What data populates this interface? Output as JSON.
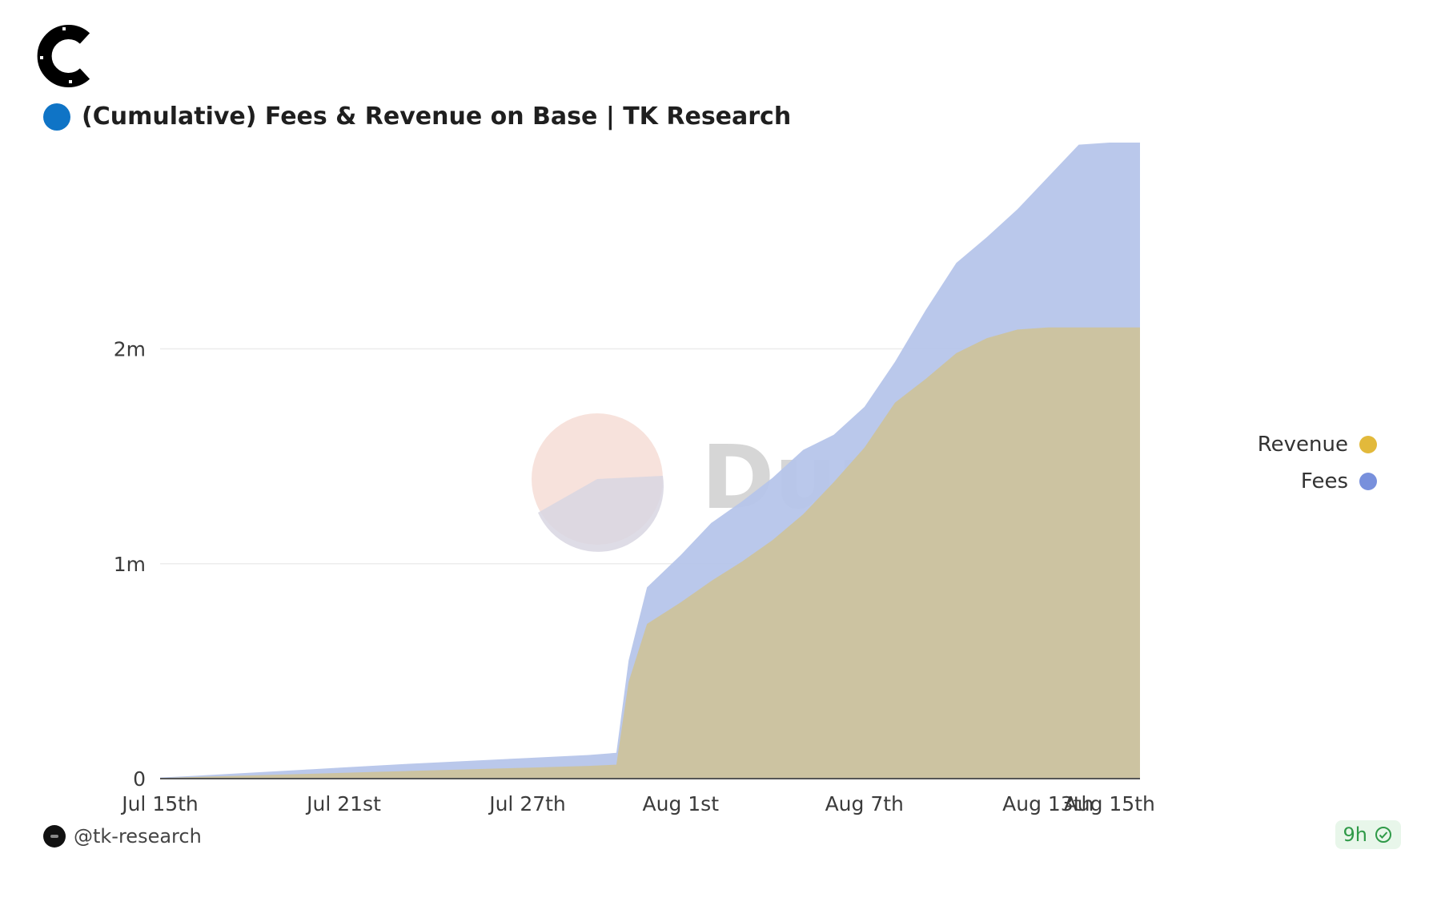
{
  "logo": {
    "icon": "c-logo-icon"
  },
  "title": {
    "text": "(Cumulative) Fees & Revenue on Base | TK Research",
    "dot_color": "#0f74c6"
  },
  "watermark": {
    "text": "Dune"
  },
  "legend": [
    {
      "label": "Revenue",
      "color": "#e2b93b"
    },
    {
      "label": "Fees",
      "color": "#7890dc"
    }
  ],
  "footer": {
    "author": "@tk-research",
    "freshness": "9h",
    "freshness_icon": "check-circle-icon"
  },
  "chart_data": {
    "type": "area",
    "title": "(Cumulative) Fees & Revenue on Base | TK Research",
    "stacked": false,
    "x_ticks": [
      "Jul 15th",
      "Jul 21st",
      "Jul 27th",
      "Aug 1st",
      "Aug 7th",
      "Aug 13th",
      "Aug 15th"
    ],
    "x_tick_day_index": [
      0,
      6,
      12,
      17,
      23,
      29,
      31
    ],
    "y_ticks": [
      "0",
      "1m",
      "2m"
    ],
    "y_tick_values": [
      0,
      1000000,
      2000000
    ],
    "ylim": [
      0,
      2960000
    ],
    "xlim": [
      0,
      32
    ],
    "grid": true,
    "legend_position": "right",
    "series": [
      {
        "name": "Fees",
        "color": "#b6c5ea",
        "x": [
          0,
          1,
          2,
          3,
          4,
          5,
          6,
          7,
          8,
          9,
          10,
          11,
          12,
          13,
          14,
          14.9,
          15.3,
          15.9,
          17,
          18,
          19,
          20,
          21,
          22,
          23,
          24,
          25,
          26,
          27,
          28,
          29,
          30,
          31,
          32
        ],
        "values": [
          5000,
          12000,
          20000,
          28000,
          36000,
          44000,
          52000,
          60000,
          68000,
          75000,
          82000,
          89000,
          96000,
          103000,
          110000,
          120000,
          550000,
          890000,
          1040000,
          1190000,
          1290000,
          1400000,
          1530000,
          1600000,
          1730000,
          1940000,
          2180000,
          2400000,
          2520000,
          2650000,
          2800000,
          2950000,
          2960000,
          2960000
        ]
      },
      {
        "name": "Revenue",
        "color": "#cdc29a",
        "x": [
          0,
          1,
          2,
          3,
          4,
          5,
          6,
          7,
          8,
          9,
          10,
          11,
          12,
          13,
          14,
          14.9,
          15.3,
          15.9,
          17,
          18,
          19,
          20,
          21,
          22,
          23,
          24,
          25,
          26,
          27,
          28,
          29,
          30,
          31,
          32
        ],
        "values": [
          3000,
          7000,
          11000,
          15000,
          19000,
          23000,
          27000,
          31000,
          35000,
          39000,
          43000,
          47000,
          51000,
          55000,
          59000,
          65000,
          450000,
          720000,
          820000,
          920000,
          1010000,
          1110000,
          1230000,
          1380000,
          1540000,
          1750000,
          1860000,
          1980000,
          2050000,
          2090000,
          2100000,
          2100000,
          2100000,
          2100000
        ]
      }
    ]
  }
}
